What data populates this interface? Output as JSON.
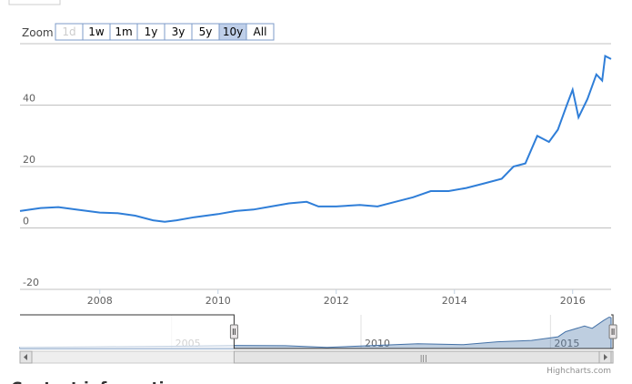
{
  "chart_data": {
    "type": "line",
    "zoom_label": "Zoom",
    "buttons": [
      "1d",
      "1w",
      "1m",
      "1y",
      "3y",
      "5y",
      "10y",
      "All"
    ],
    "selected_button": "10y",
    "disabled_buttons": [
      "1d"
    ],
    "xlim": [
      2006.65,
      2016.65
    ],
    "xticks": [
      2008,
      2010,
      2012,
      2014,
      2016
    ],
    "ylim": [
      -20,
      60
    ],
    "yticks": [
      -20,
      0,
      20,
      40
    ],
    "grid": true,
    "series": [
      {
        "color": "#2f7ed8",
        "x": [
          2006.65,
          2007.0,
          2007.3,
          2007.6,
          2008.0,
          2008.3,
          2008.6,
          2008.9,
          2009.1,
          2009.3,
          2009.6,
          2010.0,
          2010.3,
          2010.6,
          2010.9,
          2011.2,
          2011.5,
          2011.7,
          2012.0,
          2012.4,
          2012.7,
          2013.0,
          2013.3,
          2013.6,
          2013.9,
          2014.2,
          2014.5,
          2014.8,
          2015.0,
          2015.2,
          2015.4,
          2015.5,
          2015.6,
          2015.75,
          2015.9,
          2016.0,
          2016.1,
          2016.25,
          2016.4,
          2016.5,
          2016.55,
          2016.65
        ],
        "values": [
          5.5,
          6.5,
          6.8,
          6,
          5,
          4.8,
          4,
          2.5,
          2,
          2.5,
          3.5,
          4.5,
          5.5,
          6,
          7,
          8,
          8.5,
          7,
          7,
          7.5,
          7,
          8.5,
          10,
          12,
          12,
          13,
          14.5,
          16,
          20,
          21,
          30,
          29,
          28,
          32,
          40,
          45,
          36,
          42,
          50,
          48,
          56,
          55
        ]
      }
    ],
    "navigator": {
      "color": "#4572a7",
      "xlim": [
        2001,
        2016.6
      ],
      "xticks": [
        2005,
        2010,
        2015
      ],
      "ylim": [
        0,
        60
      ],
      "x": [
        2001,
        2003,
        2005,
        2006.65,
        2008,
        2009.1,
        2010,
        2011.5,
        2012.7,
        2013.6,
        2014.5,
        2015.2,
        2015.4,
        2015.9,
        2016.1,
        2016.4,
        2016.55,
        2016.6
      ],
      "values": [
        2,
        3,
        4,
        5.5,
        5,
        2,
        4.5,
        8.5,
        7,
        12,
        14.5,
        21,
        30,
        40,
        36,
        50,
        56,
        55
      ]
    },
    "credits": "Highcharts.com",
    "footer_heading": "Contact information"
  }
}
